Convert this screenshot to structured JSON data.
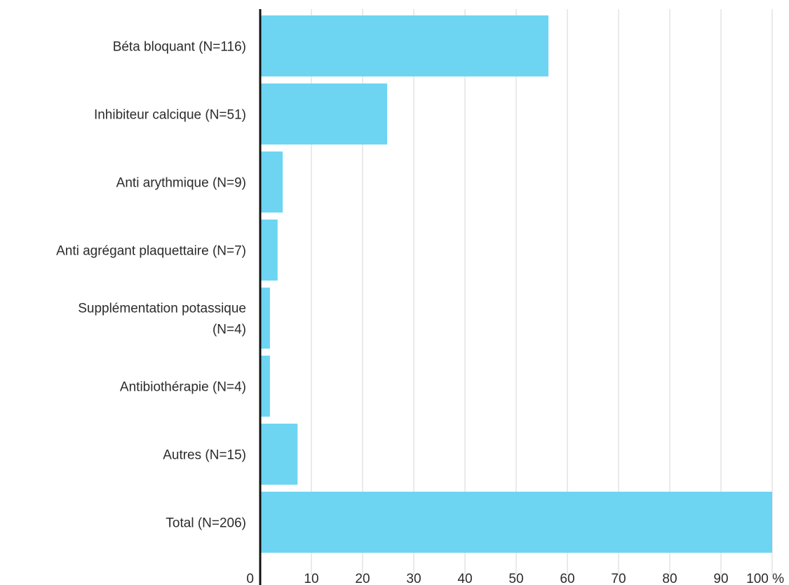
{
  "chart_data": {
    "type": "bar",
    "orientation": "horizontal",
    "categories": [
      "Béta bloquant (N=116)",
      "Inhibiteur calcique (N=51)",
      "Anti arythmique (N=9)",
      "Anti agrégant plaquettaire (N=7)",
      [
        "Supplémentation potassique",
        "(N=4)"
      ],
      "Antibiothérapie (N=4)",
      "Autres (N=15)",
      "Total (N=206)"
    ],
    "values": [
      56.3,
      24.8,
      4.4,
      3.4,
      1.9,
      1.9,
      7.3,
      100
    ],
    "x_ticks": [
      "0",
      "10",
      "20",
      "30",
      "40",
      "50",
      "60",
      "70",
      "80",
      "90",
      "100 %"
    ],
    "xlim": [
      0,
      100
    ],
    "title": "",
    "xlabel": "",
    "ylabel": "",
    "grid": "vertical",
    "legend": "none",
    "colors": {
      "bar": "#6dd5f2",
      "grid": "#e3e3e3",
      "axis": "#111111",
      "text": "#2b2b2b"
    }
  }
}
